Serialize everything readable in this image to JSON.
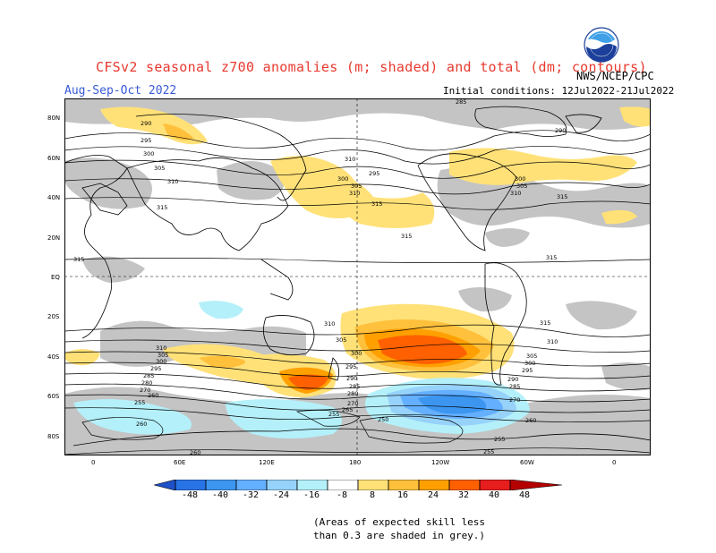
{
  "title": "CFSv2 seasonal z700 anomalies (m; shaded) and total (dm; contours)",
  "season": "Aug-Sep-Oct 2022",
  "initial_conditions": "Initial conditions: 12Jul2022-21Jul2022",
  "agency": "NWS/NCEP/CPC",
  "logo_text": "NOAA",
  "lat_labels": [
    "80N",
    "60N",
    "40N",
    "20N",
    "EQ",
    "20S",
    "40S",
    "60S",
    "80S"
  ],
  "lon_labels": [
    "0",
    "60E",
    "120E",
    "180",
    "120W",
    "60W",
    "0"
  ],
  "colorbar": {
    "ticks": [
      "-48",
      "-40",
      "-32",
      "-24",
      "-16",
      "-8",
      "8",
      "16",
      "24",
      "32",
      "40",
      "48"
    ],
    "colors": [
      "#1e50c8",
      "#2873e6",
      "#3c96f0",
      "#64afff",
      "#96d2fa",
      "#b4f0fa",
      "#ffffff",
      "#ffe178",
      "#ffc03c",
      "#ffa000",
      "#ff6000",
      "#e61e1e",
      "#b40000"
    ]
  },
  "note_line1": "(Areas of expected skill less",
  "note_line2": "than 0.3 are shaded in grey.)",
  "contour_labels": [
    {
      "text": "290"
    },
    {
      "text": "295"
    },
    {
      "text": "300"
    },
    {
      "text": "305"
    },
    {
      "text": "310"
    },
    {
      "text": "315"
    },
    {
      "text": "285"
    },
    {
      "text": "290"
    },
    {
      "text": "300"
    },
    {
      "text": "305"
    },
    {
      "text": "310"
    },
    {
      "text": "315"
    },
    {
      "text": "295"
    },
    {
      "text": "300"
    },
    {
      "text": "305"
    },
    {
      "text": "310"
    },
    {
      "text": "315"
    },
    {
      "text": "310"
    },
    {
      "text": "315"
    },
    {
      "text": "315"
    },
    {
      "text": "315"
    },
    {
      "text": "310"
    },
    {
      "text": "305"
    },
    {
      "text": "300"
    },
    {
      "text": "295"
    },
    {
      "text": "290"
    },
    {
      "text": "285"
    },
    {
      "text": "280"
    },
    {
      "text": "270"
    },
    {
      "text": "265"
    },
    {
      "text": "255"
    },
    {
      "text": "260"
    },
    {
      "text": "255"
    },
    {
      "text": "250"
    },
    {
      "text": "255"
    },
    {
      "text": "260"
    },
    {
      "text": "255"
    },
    {
      "text": "310"
    },
    {
      "text": "305"
    },
    {
      "text": "300"
    },
    {
      "text": "295"
    },
    {
      "text": "285"
    },
    {
      "text": "280"
    },
    {
      "text": "270"
    },
    {
      "text": "260"
    },
    {
      "text": "315"
    },
    {
      "text": "310"
    },
    {
      "text": "305"
    },
    {
      "text": "300"
    },
    {
      "text": "295"
    },
    {
      "text": "290"
    },
    {
      "text": "285"
    },
    {
      "text": "270"
    },
    {
      "text": "260"
    }
  ]
}
